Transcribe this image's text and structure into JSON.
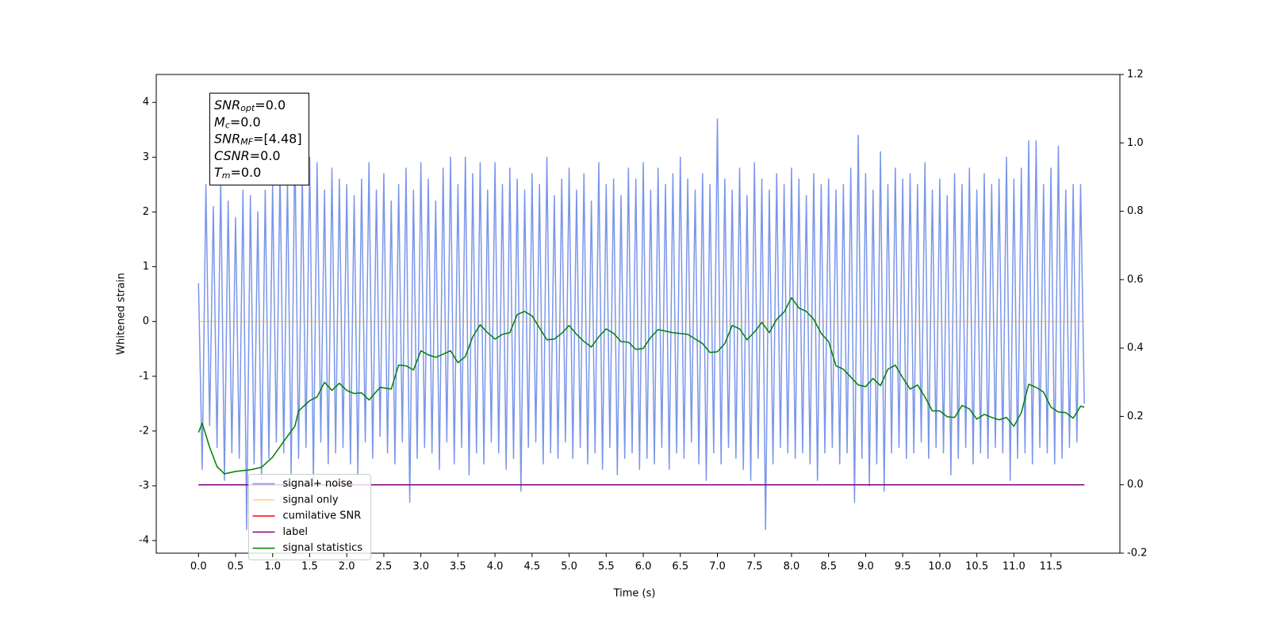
{
  "chart_data": {
    "type": "line",
    "xlabel": "Time (s)",
    "ylabel": "Whitened strain",
    "xlim": [
      -0.57,
      12.43
    ],
    "ylim": [
      -4.23,
      4.51
    ],
    "y2lim": [
      -0.2,
      1.2
    ],
    "xticks": [
      {
        "value": 0,
        "label": "0.0"
      },
      0.5,
      {
        "value": 1,
        "label": "1.0"
      },
      1.5,
      {
        "value": 2,
        "label": "2.0"
      },
      2.5,
      {
        "value": 3,
        "label": "3.0"
      },
      3.5,
      {
        "value": 4,
        "label": "4.0"
      },
      4.5,
      {
        "value": 5,
        "label": "5.0"
      },
      5.5,
      {
        "value": 6,
        "label": "6.0"
      },
      6.5,
      {
        "value": 7,
        "label": "7.0"
      },
      7.5,
      {
        "value": 8,
        "label": "8.0"
      },
      8.5,
      {
        "value": 9,
        "label": "9.0"
      },
      9.5,
      {
        "value": 10,
        "label": "10.0"
      },
      10.5,
      {
        "value": 11,
        "label": "11.0"
      },
      11.5
    ],
    "yticks": [
      -4,
      -3,
      -2,
      -1,
      0,
      1,
      2,
      3,
      4
    ],
    "y2ticks": [
      -0.2,
      {
        "value": 0,
        "label": "0.0"
      },
      0.2,
      0.4,
      0.6,
      0.8,
      {
        "value": 1,
        "label": "1.0"
      },
      1.2
    ],
    "legend": "lower left",
    "annotation": [
      {
        "symbol": "SNR",
        "subscript": "opt",
        "text": "=0.0"
      },
      {
        "symbol": "M",
        "subscript": "c",
        "text": "=0.0"
      },
      {
        "symbol": "SNR",
        "subscript": "MF",
        "text": "=[4.48]"
      },
      {
        "symbol": "CSNR",
        "text": "=0.0"
      },
      {
        "symbol": "T",
        "subscript": "m",
        "text": "=0.0"
      }
    ],
    "series": [
      {
        "name": "signal+ noise",
        "color": "#4169e1",
        "alpha": 0.7,
        "x": [
          0,
          0.05,
          0.1,
          0.15,
          0.2,
          0.25,
          0.3,
          0.35,
          0.4,
          0.45,
          0.5,
          0.55,
          0.6,
          0.65,
          0.7,
          0.75,
          0.8,
          0.85,
          0.9,
          0.95,
          1,
          1.05,
          1.1,
          1.15,
          1.2,
          1.25,
          1.3,
          1.35,
          1.4,
          1.45,
          1.5,
          1.55,
          1.6,
          1.65,
          1.7,
          1.75,
          1.8,
          1.85,
          1.9,
          1.95,
          2,
          2.05,
          2.1,
          2.15,
          2.2,
          2.25,
          2.3,
          2.35,
          2.4,
          2.45,
          2.5,
          2.55,
          2.6,
          2.65,
          2.7,
          2.75,
          2.8,
          2.85,
          2.9,
          2.95,
          3,
          3.05,
          3.1,
          3.15,
          3.2,
          3.25,
          3.3,
          3.35,
          3.4,
          3.45,
          3.5,
          3.55,
          3.6,
          3.65,
          3.7,
          3.75,
          3.8,
          3.85,
          3.9,
          3.95,
          4,
          4.05,
          4.1,
          4.15,
          4.2,
          4.25,
          4.3,
          4.35,
          4.4,
          4.45,
          4.5,
          4.55,
          4.6,
          4.65,
          4.7,
          4.75,
          4.8,
          4.85,
          4.9,
          4.95,
          5,
          5.05,
          5.1,
          5.15,
          5.2,
          5.25,
          5.3,
          5.35,
          5.4,
          5.45,
          5.5,
          5.55,
          5.6,
          5.65,
          5.7,
          5.75,
          5.8,
          5.85,
          5.9,
          5.95,
          6,
          6.05,
          6.1,
          6.15,
          6.2,
          6.25,
          6.3,
          6.35,
          6.4,
          6.45,
          6.5,
          6.55,
          6.6,
          6.65,
          6.7,
          6.75,
          6.8,
          6.85,
          6.9,
          6.95,
          7,
          7.05,
          7.1,
          7.15,
          7.2,
          7.25,
          7.3,
          7.35,
          7.4,
          7.45,
          7.5,
          7.55,
          7.6,
          7.65,
          7.7,
          7.75,
          7.8,
          7.85,
          7.9,
          7.95,
          8,
          8.05,
          8.1,
          8.15,
          8.2,
          8.25,
          8.3,
          8.35,
          8.4,
          8.45,
          8.5,
          8.55,
          8.6,
          8.65,
          8.7,
          8.75,
          8.8,
          8.85,
          8.9,
          8.95,
          9,
          9.05,
          9.1,
          9.15,
          9.2,
          9.25,
          9.3,
          9.35,
          9.4,
          9.45,
          9.5,
          9.55,
          9.6,
          9.65,
          9.7,
          9.75,
          9.8,
          9.85,
          9.9,
          9.95,
          10,
          10.05,
          10.1,
          10.15,
          10.2,
          10.25,
          10.3,
          10.35,
          10.4,
          10.45,
          10.5,
          10.55,
          10.6,
          10.65,
          10.7,
          10.75,
          10.8,
          10.85,
          10.9,
          10.95,
          11,
          11.05,
          11.1,
          11.15,
          11.2,
          11.25,
          11.3,
          11.35,
          11.4,
          11.45,
          11.5,
          11.55,
          11.6,
          11.65,
          11.7,
          11.75,
          11.8,
          11.85,
          11.9,
          11.95
        ],
        "values": [
          0.7,
          -2.7,
          2.5,
          -1.9,
          2.1,
          -2.3,
          2.6,
          -2.9,
          2.2,
          -2.4,
          1.9,
          -2.5,
          2.4,
          -3.8,
          2.3,
          -2.6,
          2.0,
          -2.9,
          2.4,
          -2.5,
          2.5,
          -2.2,
          2.8,
          -2.4,
          2.6,
          -2.8,
          3.3,
          -2.5,
          2.7,
          -2.3,
          3.0,
          -2.9,
          2.9,
          -2.2,
          2.4,
          -2.6,
          2.8,
          -2.4,
          2.6,
          -2.3,
          2.5,
          -2.6,
          2.3,
          -2.8,
          2.6,
          -2.2,
          2.9,
          -2.5,
          2.4,
          -2.1,
          2.7,
          -2.4,
          2.2,
          -2.6,
          2.5,
          -2.2,
          2.8,
          -3.3,
          2.4,
          -2.5,
          2.9,
          -2.3,
          2.6,
          -2.4,
          2.2,
          -2.7,
          2.8,
          -2.2,
          3.0,
          -2.6,
          2.5,
          -2.3,
          3.0,
          -2.8,
          2.7,
          -2.4,
          2.9,
          -2.6,
          2.4,
          -2.2,
          2.9,
          -2.4,
          2.5,
          -2.7,
          2.8,
          -2.5,
          2.6,
          -3.1,
          2.4,
          -2.3,
          2.7,
          -2.2,
          2.5,
          -2.6,
          3.0,
          -2.4,
          2.3,
          -2.5,
          2.6,
          -2.2,
          2.8,
          -2.5,
          2.4,
          -2.3,
          2.7,
          -2.6,
          2.2,
          -2.4,
          2.9,
          -2.7,
          2.5,
          -2.3,
          2.6,
          -2.8,
          2.3,
          -2.5,
          2.8,
          -2.4,
          2.6,
          -2.7,
          2.9,
          -2.5,
          2.4,
          -2.6,
          2.8,
          -2.3,
          2.5,
          -2.7,
          2.7,
          -2.4,
          3.0,
          -2.5,
          2.6,
          -2.2,
          2.4,
          -2.6,
          2.7,
          -2.9,
          2.5,
          -2.4,
          3.7,
          -2.6,
          2.6,
          -2.3,
          2.4,
          -2.5,
          2.8,
          -2.7,
          2.3,
          -2.9,
          2.9,
          -2.5,
          2.6,
          -3.8,
          2.4,
          -2.6,
          2.7,
          -2.3,
          2.5,
          -2.4,
          2.8,
          -2.5,
          2.6,
          -2.4,
          2.3,
          -2.6,
          2.7,
          -2.9,
          2.5,
          -2.4,
          2.6,
          -2.3,
          2.4,
          -2.6,
          2.5,
          -2.4,
          2.8,
          -3.3,
          3.4,
          -2.5,
          2.7,
          -3.0,
          2.4,
          -2.6,
          3.1,
          -3.1,
          2.5,
          -2.4,
          2.8,
          -2.3,
          2.6,
          -2.5,
          2.7,
          -2.4,
          2.5,
          -2.2,
          2.9,
          -2.5,
          2.4,
          -2.3,
          2.6,
          -2.4,
          2.3,
          -2.8,
          2.7,
          -2.5,
          2.5,
          -2.3,
          2.8,
          -2.6,
          2.4,
          -2.4,
          2.7,
          -2.5,
          2.5,
          -2.3,
          2.6,
          -2.4,
          3.0,
          -2.9,
          2.6,
          -2.5,
          2.8,
          -2.4,
          3.3,
          -2.6,
          3.3,
          -2.3,
          2.5,
          -2.4,
          2.8,
          -2.6,
          3.2,
          -2.5,
          2.4,
          -2.3,
          2.5,
          -2.2,
          2.5,
          -1.5
        ]
      },
      {
        "name": "signal only",
        "color": "#ffa500",
        "alpha": 0.5,
        "x": [
          0,
          11.95
        ],
        "values": [
          0,
          0
        ]
      },
      {
        "name": "cumilative SNR",
        "color": "#ff0000",
        "alpha": 1,
        "axis": "y2",
        "x": [
          0,
          11.95
        ],
        "values": [
          0,
          0
        ]
      },
      {
        "name": "label",
        "color": "#800080",
        "alpha": 1,
        "axis": "y2",
        "x": [
          0,
          11.95
        ],
        "values": [
          0,
          0
        ]
      },
      {
        "name": "signal statistics",
        "color": "#008000",
        "alpha": 1,
        "axis": "y2",
        "x": [
          0,
          0.05,
          0.15,
          0.25,
          0.35,
          0.5,
          0.7,
          0.85,
          1,
          1.15,
          1.3,
          1.35,
          1.5,
          1.6,
          1.7,
          1.8,
          1.9,
          2,
          2.1,
          2.2,
          2.3,
          2.45,
          2.6,
          2.7,
          2.8,
          2.9,
          3,
          3.1,
          3.2,
          3.3,
          3.4,
          3.5,
          3.6,
          3.7,
          3.8,
          3.9,
          4,
          4.1,
          4.2,
          4.3,
          4.4,
          4.5,
          4.6,
          4.7,
          4.8,
          4.9,
          5,
          5.1,
          5.2,
          5.3,
          5.4,
          5.5,
          5.6,
          5.7,
          5.8,
          5.9,
          6,
          6.1,
          6.2,
          6.4,
          6.6,
          6.8,
          6.9,
          7,
          7.1,
          7.2,
          7.3,
          7.4,
          7.5,
          7.6,
          7.7,
          7.8,
          7.9,
          8,
          8.1,
          8.2,
          8.3,
          8.4,
          8.5,
          8.6,
          8.7,
          8.8,
          8.9,
          9,
          9.1,
          9.2,
          9.3,
          9.4,
          9.5,
          9.6,
          9.7,
          9.8,
          9.9,
          10,
          10.1,
          10.2,
          10.3,
          10.4,
          10.5,
          10.6,
          10.7,
          10.8,
          10.9,
          11,
          11.1,
          11.2,
          11.3,
          11.4,
          11.5,
          11.6,
          11.7,
          11.8,
          11.9,
          11.95
        ],
        "values": [
          0.153,
          0.18,
          0.11,
          0.053,
          0.032,
          0.039,
          0.044,
          0.051,
          0.081,
          0.127,
          0.171,
          0.216,
          0.246,
          0.257,
          0.3,
          0.276,
          0.297,
          0.276,
          0.267,
          0.269,
          0.248,
          0.285,
          0.28,
          0.35,
          0.348,
          0.336,
          0.392,
          0.38,
          0.373,
          0.382,
          0.392,
          0.357,
          0.375,
          0.433,
          0.468,
          0.445,
          0.426,
          0.44,
          0.445,
          0.498,
          0.507,
          0.494,
          0.459,
          0.424,
          0.426,
          0.443,
          0.466,
          0.44,
          0.419,
          0.403,
          0.433,
          0.456,
          0.443,
          0.419,
          0.417,
          0.396,
          0.399,
          0.431,
          0.454,
          0.445,
          0.44,
          0.413,
          0.387,
          0.389,
          0.413,
          0.466,
          0.456,
          0.424,
          0.447,
          0.475,
          0.445,
          0.484,
          0.505,
          0.547,
          0.517,
          0.507,
          0.484,
          0.443,
          0.419,
          0.348,
          0.338,
          0.315,
          0.292,
          0.287,
          0.311,
          0.29,
          0.338,
          0.35,
          0.313,
          0.28,
          0.292,
          0.257,
          0.216,
          0.216,
          0.199,
          0.197,
          0.232,
          0.222,
          0.192,
          0.206,
          0.197,
          0.19,
          0.197,
          0.171,
          0.211,
          0.294,
          0.285,
          0.271,
          0.227,
          0.213,
          0.211,
          0.195,
          0.23,
          0.227
        ]
      }
    ]
  }
}
